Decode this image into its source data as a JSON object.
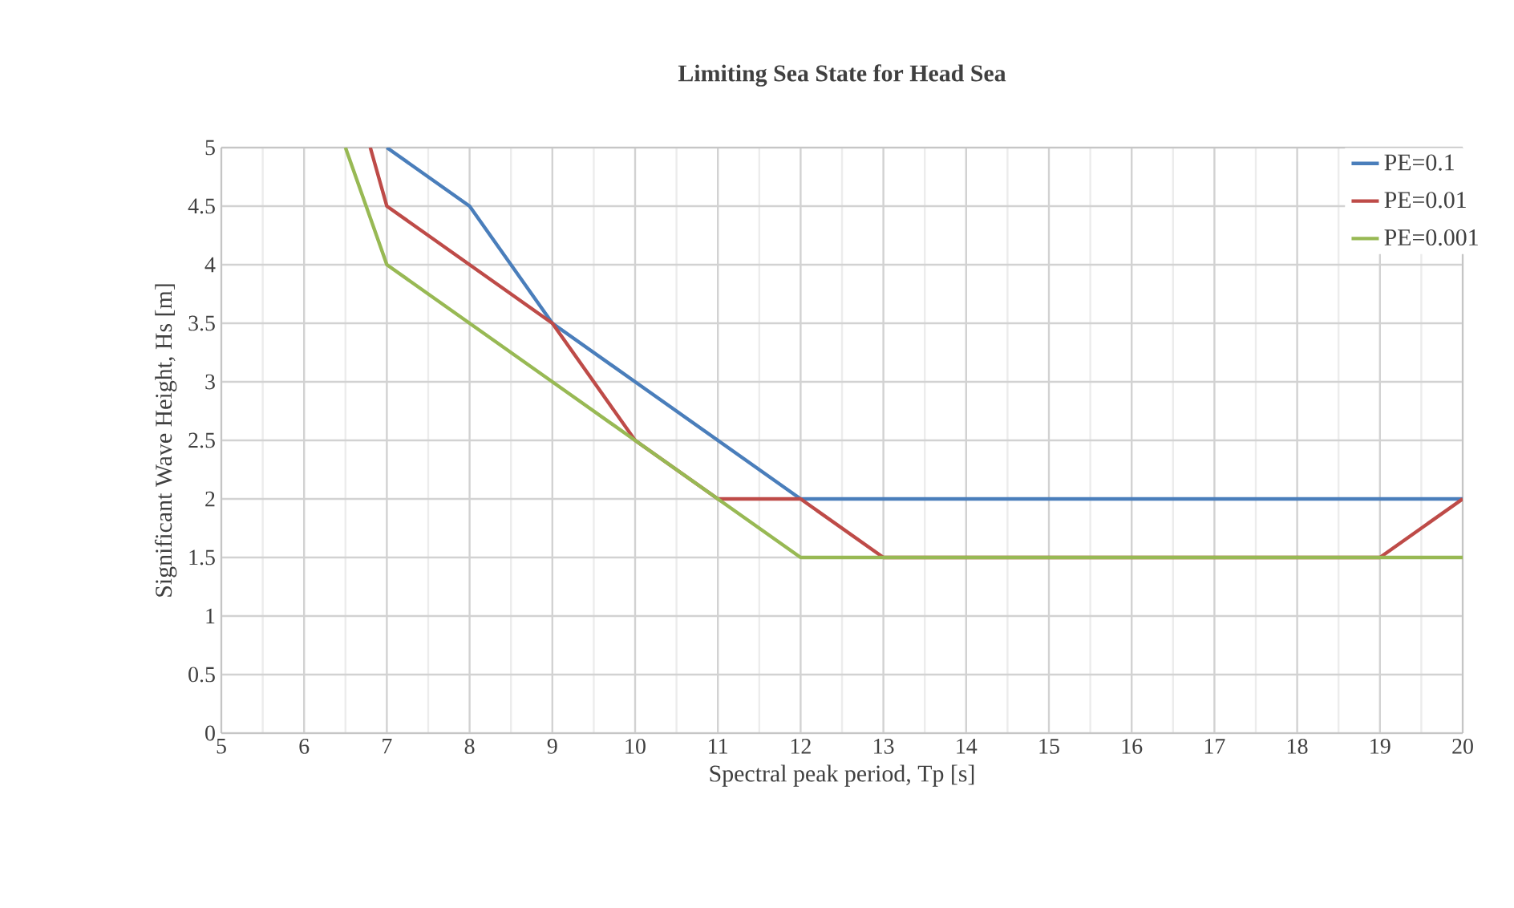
{
  "chart_data": {
    "type": "line",
    "title": "Limiting Sea State for Head Sea",
    "xlabel": "Spectral peak period, Tp [s]",
    "ylabel": "Significant Wave Height, Hs [m]",
    "xlim": [
      5,
      20
    ],
    "ylim": [
      0,
      5
    ],
    "xticks": [
      5,
      6,
      7,
      8,
      9,
      10,
      11,
      12,
      13,
      14,
      15,
      16,
      17,
      18,
      19,
      20
    ],
    "yticks": [
      0,
      0.5,
      1,
      1.5,
      2,
      2.5,
      3,
      3.5,
      4,
      4.5,
      5
    ],
    "grid": true,
    "legend": "top right",
    "marker": "none",
    "line_style": "solid",
    "series": [
      {
        "name": "PE=0.1",
        "color": "#4a7ebb",
        "x": [
          7,
          8,
          9,
          10,
          11,
          12,
          20
        ],
        "values": [
          5,
          4.5,
          3.5,
          3,
          2.5,
          2,
          2
        ]
      },
      {
        "name": "PE=0.01",
        "color": "#be4b48",
        "x": [
          6.8,
          7,
          8,
          9,
          10,
          11,
          12,
          13,
          19,
          20
        ],
        "values": [
          5,
          4.5,
          4,
          3.5,
          2.5,
          2,
          2,
          1.5,
          1.5,
          2
        ]
      },
      {
        "name": "PE=0.001",
        "color": "#98b954",
        "x": [
          6.5,
          7,
          8,
          9,
          10,
          11,
          12,
          20
        ],
        "values": [
          5,
          4,
          3.5,
          3,
          2.5,
          2,
          1.5,
          1.5
        ]
      }
    ]
  }
}
